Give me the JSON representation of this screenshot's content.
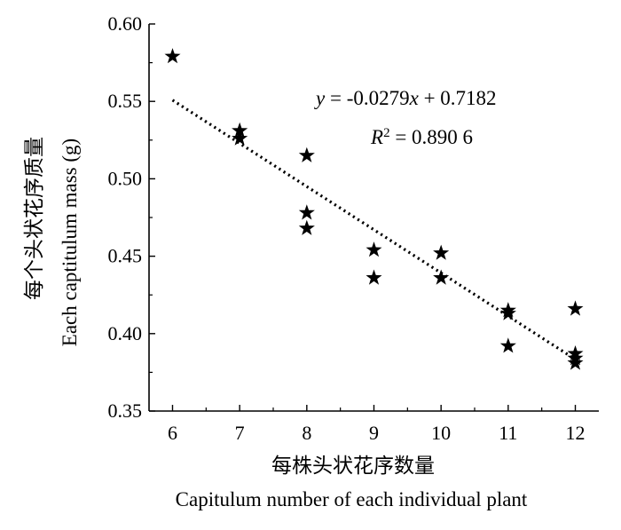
{
  "chart_data": {
    "type": "scatter",
    "xlabel_cn": "每株头状花序数量",
    "xlabel_en": "Capitulum number of each individual plant",
    "ylabel_cn": "每个头状花序质量",
    "ylabel_en": "Each captitulum mass (g)",
    "xlim": [
      5.65,
      12.35
    ],
    "ylim": [
      0.35,
      0.6
    ],
    "xticks": [
      "6",
      "7",
      "8",
      "9",
      "10",
      "11",
      "12"
    ],
    "yticks": [
      "0.35",
      "0.40",
      "0.45",
      "0.50",
      "0.55",
      "0.60"
    ],
    "grid": false,
    "marker": "star",
    "points": [
      {
        "x": 6,
        "y": 0.579
      },
      {
        "x": 7,
        "y": 0.531
      },
      {
        "x": 7,
        "y": 0.526
      },
      {
        "x": 8,
        "y": 0.515
      },
      {
        "x": 8,
        "y": 0.478
      },
      {
        "x": 8,
        "y": 0.468
      },
      {
        "x": 9,
        "y": 0.454
      },
      {
        "x": 9,
        "y": 0.436
      },
      {
        "x": 10,
        "y": 0.452
      },
      {
        "x": 10,
        "y": 0.436
      },
      {
        "x": 11,
        "y": 0.415
      },
      {
        "x": 11,
        "y": 0.413
      },
      {
        "x": 11,
        "y": 0.392
      },
      {
        "x": 12,
        "y": 0.416
      },
      {
        "x": 12,
        "y": 0.387
      },
      {
        "x": 12,
        "y": 0.384
      },
      {
        "x": 12,
        "y": 0.381
      }
    ],
    "trendline": {
      "slope": -0.0279,
      "intercept": 0.7182,
      "x_range": [
        6,
        12
      ],
      "style": "dotted"
    },
    "equation_text": {
      "y": "y",
      "rest": " = -0.0279",
      "x": "x",
      "tail": " + 0.7182"
    },
    "r2_text": {
      "r": "R",
      "sup": "2",
      "tail": " = 0.890 6"
    }
  }
}
